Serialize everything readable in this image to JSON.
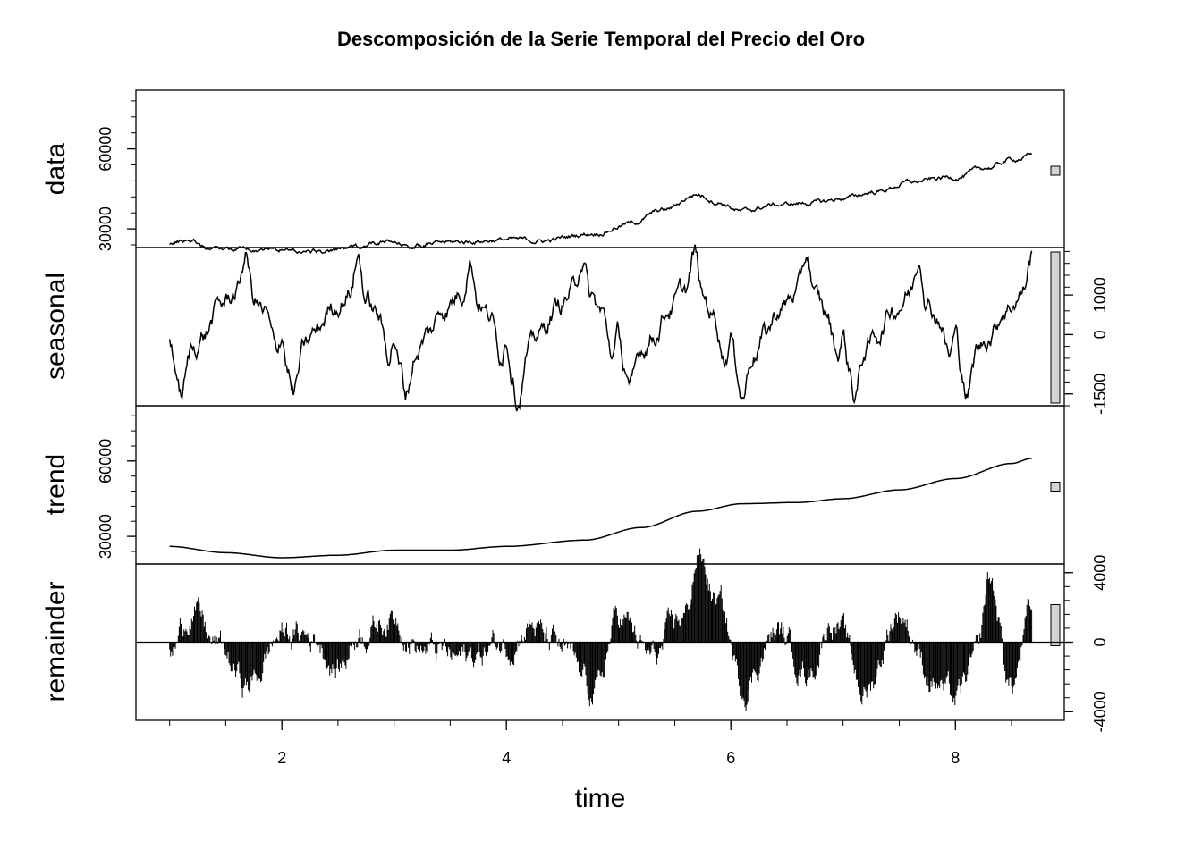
{
  "chart_data": {
    "type": "line",
    "title": "Descomposición de la Serie Temporal del Precio del Oro",
    "xlabel": "time",
    "xlim": [
      0.7,
      8.97
    ],
    "x_ticks": [
      2,
      4,
      6,
      8
    ],
    "x_range": [
      1.0,
      8.68
    ],
    "seasonal_period": 1,
    "colors": {
      "line": "#000000",
      "range_bar": "#d3d3d3",
      "background": "#ffffff"
    },
    "panels": [
      {
        "name": "data",
        "label": "data",
        "ylim": [
          23000,
          82000
        ],
        "ticks": [
          30000,
          60000
        ],
        "tick_side": "left",
        "knots": [
          [
            1.0,
            24700
          ],
          [
            1.2,
            26000
          ],
          [
            1.35,
            22800
          ],
          [
            1.6,
            22700
          ],
          [
            1.8,
            22600
          ],
          [
            2.0,
            22200
          ],
          [
            2.25,
            21500
          ],
          [
            2.45,
            21500
          ],
          [
            2.6,
            22800
          ],
          [
            2.9,
            25000
          ],
          [
            3.15,
            23500
          ],
          [
            3.5,
            25000
          ],
          [
            4.0,
            26000
          ],
          [
            4.3,
            25500
          ],
          [
            4.8,
            28500
          ],
          [
            5.1,
            32000
          ],
          [
            5.4,
            37000
          ],
          [
            5.7,
            43000
          ],
          [
            5.9,
            40000
          ],
          [
            6.1,
            36500
          ],
          [
            6.4,
            39000
          ],
          [
            6.8,
            40000
          ],
          [
            7.0,
            41500
          ],
          [
            7.3,
            44000
          ],
          [
            7.6,
            47500
          ],
          [
            8.0,
            49500
          ],
          [
            8.3,
            53000
          ],
          [
            8.5,
            56000
          ],
          [
            8.68,
            57500
          ]
        ],
        "noise_amp": 550
      },
      {
        "name": "seasonal",
        "label": "seasonal",
        "ylim": [
          -1800,
          2200
        ],
        "ticks": [
          -1500,
          0,
          1000
        ],
        "tick_side": "right",
        "cycle": [
          [
            0,
            0
          ],
          [
            0.05,
            -800
          ],
          [
            0.1,
            -1500
          ],
          [
            0.2,
            -400
          ],
          [
            0.3,
            0
          ],
          [
            0.45,
            700
          ],
          [
            0.6,
            1100
          ],
          [
            0.68,
            2000
          ],
          [
            0.75,
            900
          ],
          [
            0.85,
            500
          ],
          [
            0.95,
            -500
          ],
          [
            1.0,
            0
          ]
        ],
        "noise_amp": 170
      },
      {
        "name": "trend",
        "label": "trend",
        "ylim": [
          19000,
          82000
        ],
        "ticks": [
          30000,
          60000
        ],
        "tick_side": "left",
        "knots": [
          [
            1.0,
            26000
          ],
          [
            1.5,
            23500
          ],
          [
            2.0,
            21500
          ],
          [
            2.5,
            22500
          ],
          [
            3.0,
            24500
          ],
          [
            3.5,
            24500
          ],
          [
            4.0,
            26000
          ],
          [
            4.7,
            28500
          ],
          [
            5.2,
            33500
          ],
          [
            5.7,
            40000
          ],
          [
            6.1,
            43000
          ],
          [
            6.6,
            43500
          ],
          [
            7.0,
            45000
          ],
          [
            7.5,
            48500
          ],
          [
            8.0,
            53000
          ],
          [
            8.5,
            59000
          ],
          [
            8.68,
            61000
          ]
        ],
        "noise_amp": 0
      },
      {
        "name": "remainder",
        "label": "remainder",
        "ylim": [
          -4500,
          4500
        ],
        "ticks": [
          -4000,
          0,
          4000
        ],
        "tick_side": "right",
        "knots": [
          [
            1.0,
            -800
          ],
          [
            1.2,
            2000
          ],
          [
            1.4,
            -200
          ],
          [
            1.7,
            -2500
          ],
          [
            2.0,
            500
          ],
          [
            2.3,
            300
          ],
          [
            2.5,
            -1500
          ],
          [
            2.7,
            800
          ],
          [
            3.0,
            1500
          ],
          [
            3.3,
            -500
          ],
          [
            3.6,
            -1000
          ],
          [
            4.0,
            0
          ],
          [
            4.2,
            1200
          ],
          [
            4.4,
            -200
          ],
          [
            4.8,
            -2800
          ],
          [
            5.0,
            1500
          ],
          [
            5.3,
            -1000
          ],
          [
            5.6,
            1500
          ],
          [
            5.7,
            5000
          ],
          [
            5.9,
            2000
          ],
          [
            6.1,
            -2500
          ],
          [
            6.4,
            500
          ],
          [
            6.7,
            -1500
          ],
          [
            6.9,
            1500
          ],
          [
            7.2,
            -2800
          ],
          [
            7.5,
            1800
          ],
          [
            7.8,
            -2000
          ],
          [
            8.0,
            -3500
          ],
          [
            8.2,
            -1000
          ],
          [
            8.3,
            3500
          ],
          [
            8.5,
            -2500
          ],
          [
            8.68,
            1600
          ]
        ],
        "noise_amp": 550,
        "style": "histogram"
      }
    ]
  }
}
